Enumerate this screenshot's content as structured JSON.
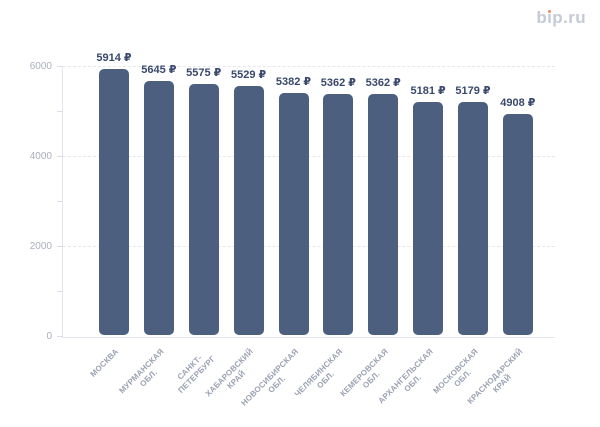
{
  "header": {
    "logo": {
      "part_b": "b",
      "part_i_dotless": "ı",
      "part_rest": "p.ru",
      "full_text": "bip.ru",
      "text_color": "#c6cad7",
      "dot_color": "#ee8a68"
    }
  },
  "chart_data": {
    "type": "bar",
    "title": "",
    "xlabel": "",
    "ylabel": "",
    "categories": [
      "МОСКВА",
      "МУРМАНСКАЯ\nОБЛ.",
      "САНКТ-\nПЕТЕРБУРГ",
      "ХАБАРОВСКИЙ\nКРАЙ",
      "НОВОСИБИРСКАЯ\nОБЛ.",
      "ЧЕЛЯБИНСКАЯ\nОБЛ.",
      "КЕМЕРОВСКАЯ\nОБЛ.",
      "АРХАНГЕЛЬСКАЯ\nОБЛ.",
      "МОСКОВСКАЯ\nОБЛ.",
      "КРАСНОДАРСКИЙ\nКРАЙ"
    ],
    "values": [
      5914,
      5645,
      5575,
      5529,
      5382,
      5362,
      5362,
      5181,
      5179,
      4908
    ],
    "value_suffix": " ₽",
    "ylim": [
      0,
      6000
    ],
    "yticks_labeled": [
      0,
      2000,
      4000,
      6000
    ],
    "yticks_minor": [
      1000,
      3000,
      5000
    ],
    "gridlines": [
      2000,
      4000,
      6000
    ],
    "grid_style": "dashed",
    "legend_position": "none",
    "bar_color": "#4c5f7f",
    "value_label_color": "#39486c",
    "axis_label_color": "#a9aebb",
    "x_label_color": "#9aa1b1"
  }
}
